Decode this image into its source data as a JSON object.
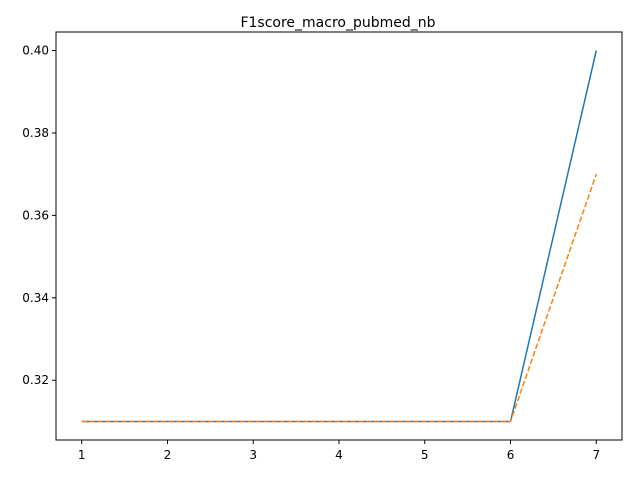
{
  "chart_data": {
    "type": "line",
    "title": "F1score_macro_pubmed_nb",
    "xlabel": "",
    "ylabel": "",
    "x": [
      1,
      2,
      3,
      4,
      5,
      6,
      7
    ],
    "xlim": [
      0.7,
      7.3
    ],
    "ylim": [
      0.3055,
      0.4045
    ],
    "xticks": [
      1,
      2,
      3,
      4,
      5,
      6,
      7
    ],
    "xtick_labels": [
      "1",
      "2",
      "3",
      "4",
      "5",
      "6",
      "7"
    ],
    "yticks": [
      0.32,
      0.34,
      0.36,
      0.38,
      0.4
    ],
    "ytick_labels": [
      "0.32",
      "0.34",
      "0.36",
      "0.38",
      "0.40"
    ],
    "grid": false,
    "series": [
      {
        "values": [
          0.31,
          0.31,
          0.31,
          0.31,
          0.31,
          0.31,
          0.4
        ],
        "color": "#1f77b4",
        "dash": "solid"
      },
      {
        "values": [
          0.31,
          0.31,
          0.31,
          0.31,
          0.31,
          0.31,
          0.37
        ],
        "color": "#ff7f0e",
        "dash": "dashed"
      }
    ]
  }
}
